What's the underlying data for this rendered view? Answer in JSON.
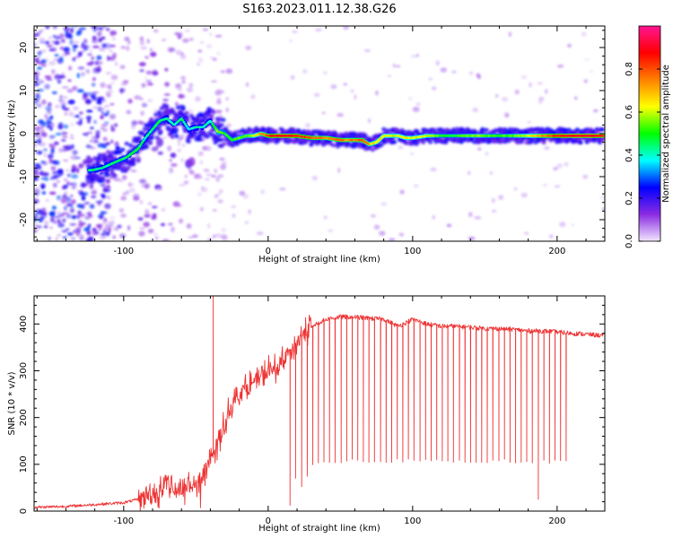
{
  "figure": {
    "title": "S163.2023.011.12.38.G26"
  },
  "chart_data": [
    {
      "type": "heatmap",
      "xlabel": "Height of straight line (km)",
      "ylabel": "Frequency (Hz)",
      "xlim": [
        -162,
        233
      ],
      "ylim": [
        -25,
        25
      ],
      "xticks": [
        -100,
        0,
        100,
        200
      ],
      "yticks": [
        -20,
        -10,
        0,
        10,
        20
      ],
      "colorbar": {
        "label": "Normalized spectral amplitude",
        "range": [
          0,
          1
        ],
        "ticks": [
          "0.0",
          "0.2",
          "0.4",
          "0.6",
          "0.8"
        ],
        "colors": [
          "#f2e6ff",
          "#8a2be2",
          "#0000ff",
          "#00ffff",
          "#00ff00",
          "#ffff00",
          "#ff8000",
          "#ff0000",
          "#ff1493"
        ]
      },
      "ridge": {
        "x": [
          -122,
          -115,
          -105,
          -98,
          -90,
          -85,
          -80,
          -75,
          -70,
          -65,
          -60,
          -55,
          -50,
          -45,
          -40,
          -35,
          -30,
          -25,
          -20,
          -15,
          -10,
          -5,
          0,
          10,
          20,
          30,
          40,
          50,
          55,
          60,
          65,
          70,
          75,
          80,
          85,
          90,
          95,
          100,
          110,
          120,
          130,
          140,
          150,
          160,
          170,
          180,
          190,
          200,
          210,
          220,
          230
        ],
        "y": [
          -8.5,
          -8,
          -6.5,
          -5.5,
          -3.5,
          -1,
          1,
          3,
          3.5,
          2,
          3.5,
          1,
          1.5,
          1.5,
          3,
          0.5,
          0,
          -1.5,
          -1,
          -0.5,
          -0.5,
          0,
          -0.5,
          -0.5,
          -0.5,
          -1,
          -1,
          -1.5,
          -1.5,
          -1.5,
          -1.5,
          -2.5,
          -2,
          -0.5,
          -0.5,
          -0.5,
          -1,
          -1,
          -0.5,
          -0.5,
          -0.5,
          -0.5,
          -0.5,
          -0.5,
          -0.5,
          -0.5,
          -0.5,
          -0.5,
          -0.5,
          -0.5,
          -0.5
        ],
        "amplitude": [
          0.45,
          0.42,
          0.45,
          0.45,
          0.48,
          0.42,
          0.45,
          0.48,
          0.42,
          0.4,
          0.45,
          0.38,
          0.4,
          0.42,
          0.4,
          0.55,
          0.5,
          0.5,
          0.55,
          0.55,
          0.6,
          0.7,
          0.82,
          0.9,
          0.85,
          0.8,
          0.75,
          0.8,
          0.75,
          0.75,
          0.8,
          0.7,
          0.65,
          0.65,
          0.6,
          0.6,
          0.65,
          0.6,
          0.6,
          0.5,
          0.5,
          0.55,
          0.55,
          0.5,
          0.55,
          0.6,
          0.75,
          0.85,
          0.9,
          0.9,
          0.88
        ]
      }
    },
    {
      "type": "line",
      "xlabel": "Height of straight line (km)",
      "ylabel": "SNR (10 * v/v)",
      "xlim": [
        -162,
        233
      ],
      "ylim": [
        0,
        460
      ],
      "xticks": [
        -100,
        0,
        100,
        200
      ],
      "yticks": [
        0,
        100,
        200,
        300,
        400
      ],
      "color": "#ee3333",
      "series": [
        {
          "x": [
            -162,
            -140,
            -120,
            -100,
            -90,
            -80,
            -75,
            -70,
            -65,
            -60,
            -55,
            -50,
            -45,
            -40,
            -35,
            -30,
            -25,
            -20,
            -15,
            -10,
            -5,
            0,
            5,
            10,
            15,
            20,
            25,
            30,
            40,
            50,
            60,
            70,
            80,
            90,
            100,
            110,
            120,
            130,
            140,
            150,
            160,
            170,
            180,
            190,
            200,
            210,
            220,
            233
          ],
          "values": [
            8,
            10,
            14,
            18,
            25,
            40,
            60,
            55,
            50,
            45,
            60,
            50,
            80,
            100,
            150,
            190,
            230,
            250,
            265,
            275,
            285,
            300,
            300,
            320,
            340,
            360,
            380,
            395,
            410,
            415,
            415,
            412,
            410,
            395,
            410,
            400,
            395,
            395,
            393,
            390,
            390,
            388,
            385,
            385,
            383,
            380,
            378,
            375
          ]
        }
      ],
      "dropouts": {
        "x_start": 15,
        "x_end": 208,
        "step": 3.9,
        "floor": [
          10,
          100,
          102,
          104,
          104,
          105,
          105,
          104,
          103,
          103,
          102,
          100
        ],
        "deep": [
          {
            "x": 188,
            "value": 22
          }
        ]
      },
      "spike": {
        "x": -38,
        "value": 460
      }
    }
  ]
}
